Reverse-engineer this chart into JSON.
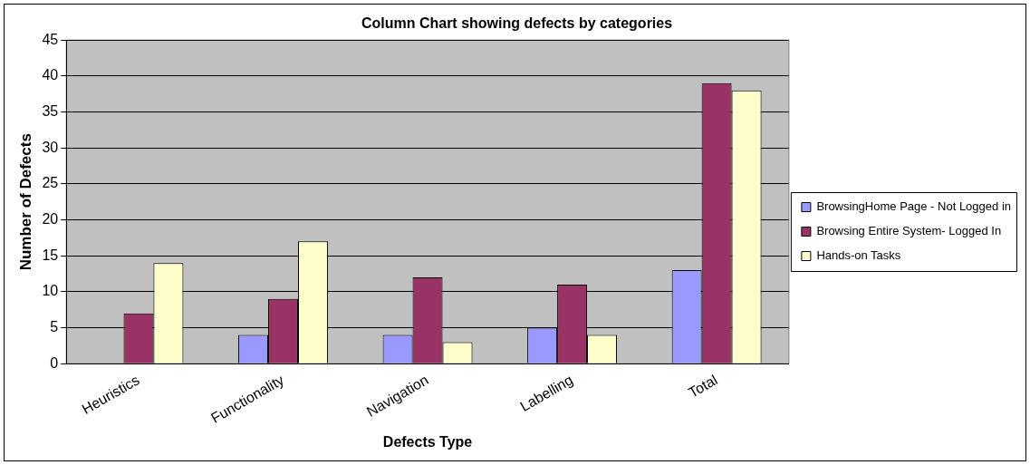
{
  "chart_data": {
    "type": "bar",
    "title": "Column Chart showing defects by categories",
    "xlabel": "Defects Type",
    "ylabel": "Number of Defects",
    "categories": [
      "Heuristics",
      "Functionality",
      "Navigation",
      "Labelling",
      "Total"
    ],
    "series": [
      {
        "name": "BrowsingHome Page - Not Logged in",
        "color": "#9999ff",
        "values": [
          0,
          4,
          4,
          5,
          13
        ]
      },
      {
        "name": "Browsing Entire System- Logged In",
        "color": "#993366",
        "values": [
          7,
          9,
          12,
          11,
          39
        ]
      },
      {
        "name": "Hands-on Tasks",
        "color": "#ffffcc",
        "values": [
          14,
          17,
          3,
          4,
          38
        ]
      }
    ],
    "ylim": [
      0,
      45
    ],
    "yticks": [
      0,
      5,
      10,
      15,
      20,
      25,
      30,
      35,
      40,
      45
    ],
    "grid": "y",
    "legend": "right"
  }
}
